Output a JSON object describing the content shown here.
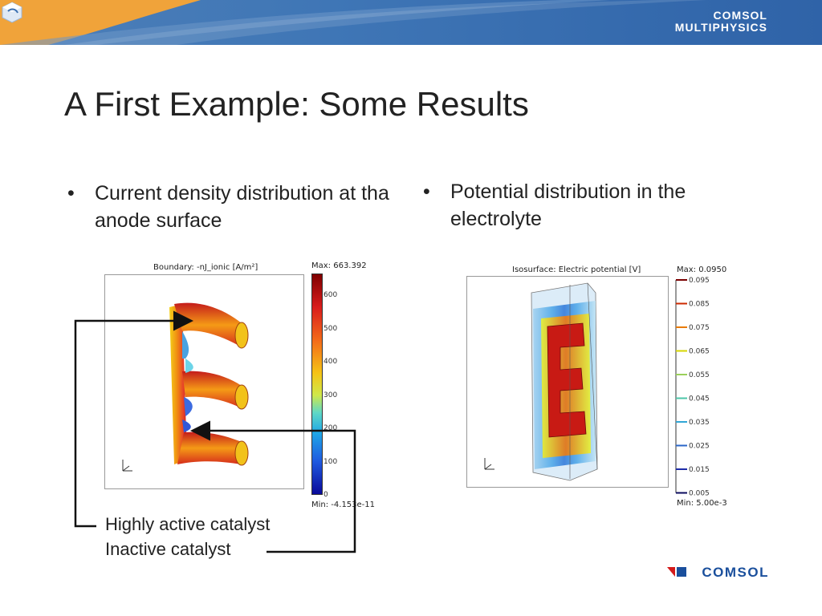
{
  "header": {
    "logo_line1": "COMSOL",
    "logo_line2": "MULTIPHYSICS"
  },
  "title": "A First Example: Some Results",
  "bullets": {
    "left": "Current density distribution at tha anode surface",
    "right": "Potential distribution in the electrolyte"
  },
  "left_plot": {
    "header": "Boundary: -nJ_ionic [A/m²]",
    "max": "Max: 663.392",
    "min": "Min: -4.153e-11",
    "ticks": [
      "600",
      "500",
      "400",
      "300",
      "200",
      "100",
      "0"
    ]
  },
  "right_plot": {
    "header": "Isosurface: Electric potential [V]",
    "max": "Max: 0.0950",
    "min": "Min: 5.00e-3",
    "ticks": [
      "0.095",
      "0.085",
      "0.075",
      "0.065",
      "0.055",
      "0.045",
      "0.035",
      "0.025",
      "0.015",
      "0.005"
    ],
    "tick_colors": [
      "#7a0000",
      "#cc2a00",
      "#e87a00",
      "#d6d600",
      "#9ad05a",
      "#4cc6a8",
      "#31a6d6",
      "#2a66c8",
      "#1e2ca8",
      "#0b0b5e"
    ]
  },
  "callouts": {
    "active": "Highly active catalyst",
    "inactive": "Inactive catalyst"
  },
  "footer": {
    "logo": "COMSOL"
  }
}
